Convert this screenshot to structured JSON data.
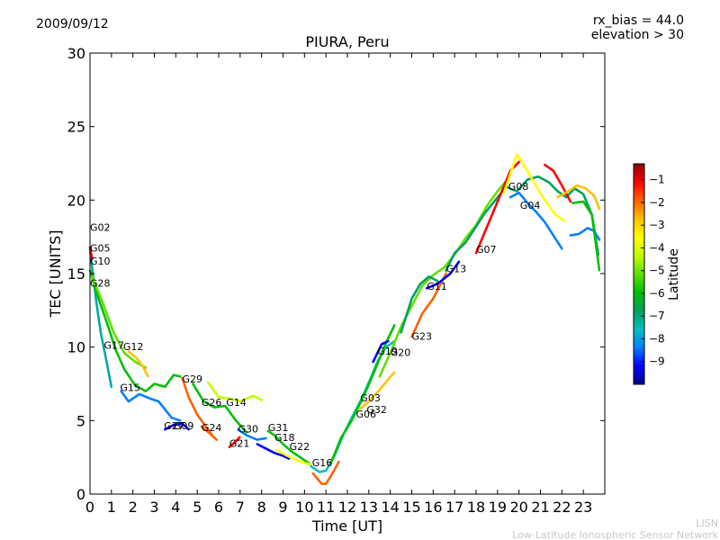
{
  "chart_data": {
    "type": "scatter",
    "title": "PIURA, Peru",
    "date": "2009/09/12",
    "annotation": [
      "rx_bias = 44.0",
      "elevation > 30"
    ],
    "xlabel": "Time [UT]",
    "ylabel": "TEC [UNITS]",
    "xlim": [
      0,
      24
    ],
    "ylim": [
      0,
      30
    ],
    "xticks": [
      "0",
      "1",
      "2",
      "3",
      "4",
      "5",
      "6",
      "7",
      "8",
      "9",
      "10",
      "11",
      "12",
      "13",
      "14",
      "15",
      "16",
      "17",
      "18",
      "19",
      "20",
      "21",
      "22",
      "23"
    ],
    "yticks": [
      "0",
      "5",
      "10",
      "15",
      "20",
      "25",
      "30"
    ],
    "colorbar": {
      "label": "Latitude",
      "range": [
        -10,
        -0.3
      ],
      "ticks": [
        "−1",
        "−2",
        "−3",
        "−4",
        "−5",
        "−6",
        "−7",
        "−8",
        "−9"
      ],
      "colors": [
        "#00008f",
        "#0000ff",
        "#0080ff",
        "#00c0c0",
        "#00a060",
        "#00c000",
        "#60e000",
        "#c0ff00",
        "#ffff00",
        "#ffc000",
        "#ff6000",
        "#ff0000",
        "#900000"
      ]
    },
    "satellite_labels": [
      {
        "name": "G02",
        "t": 0.0,
        "tec": 17.9
      },
      {
        "name": "G05",
        "t": 0.0,
        "tec": 16.5
      },
      {
        "name": "G10",
        "t": 0.0,
        "tec": 15.6
      },
      {
        "name": "G28",
        "t": 0.0,
        "tec": 14.1
      },
      {
        "name": "G17",
        "t": 0.65,
        "tec": 9.9
      },
      {
        "name": "G12",
        "t": 1.55,
        "tec": 9.8
      },
      {
        "name": "G15",
        "t": 1.4,
        "tec": 7.0
      },
      {
        "name": "G29",
        "t": 4.3,
        "tec": 7.6
      },
      {
        "name": "G26",
        "t": 5.2,
        "tec": 6.0
      },
      {
        "name": "G14",
        "t": 6.35,
        "tec": 6.0
      },
      {
        "name": "G27",
        "t": 3.45,
        "tec": 4.4
      },
      {
        "name": "G09",
        "t": 3.9,
        "tec": 4.4
      },
      {
        "name": "G24",
        "t": 5.2,
        "tec": 4.3
      },
      {
        "name": "G30",
        "t": 6.9,
        "tec": 4.2
      },
      {
        "name": "G31",
        "t": 8.3,
        "tec": 4.3
      },
      {
        "name": "G21",
        "t": 6.5,
        "tec": 3.2
      },
      {
        "name": "G18",
        "t": 8.6,
        "tec": 3.6
      },
      {
        "name": "G22",
        "t": 9.3,
        "tec": 3.0
      },
      {
        "name": "G16",
        "t": 10.35,
        "tec": 1.9
      },
      {
        "name": "G06",
        "t": 12.4,
        "tec": 5.2
      },
      {
        "name": "G03",
        "t": 12.6,
        "tec": 6.3
      },
      {
        "name": "G32",
        "t": 12.9,
        "tec": 5.5
      },
      {
        "name": "G19",
        "t": 13.4,
        "tec": 9.5
      },
      {
        "name": "G20",
        "t": 14.0,
        "tec": 9.4
      },
      {
        "name": "G23",
        "t": 15.0,
        "tec": 10.5
      },
      {
        "name": "G11",
        "t": 15.7,
        "tec": 13.9
      },
      {
        "name": "G13",
        "t": 16.6,
        "tec": 15.1
      },
      {
        "name": "G07",
        "t": 18.0,
        "tec": 16.4
      },
      {
        "name": "G08",
        "t": 19.5,
        "tec": 20.7
      },
      {
        "name": "G04",
        "t": 20.05,
        "tec": 19.4
      }
    ],
    "series": [
      {
        "name": "arc-a",
        "color": "#00a8a8",
        "points": [
          [
            0.0,
            16.6
          ],
          [
            0.3,
            13.0
          ],
          [
            0.5,
            11.0
          ],
          [
            0.8,
            8.8
          ],
          [
            1.0,
            7.3
          ]
        ]
      },
      {
        "name": "arc-b",
        "color": "#00c000",
        "points": [
          [
            0.0,
            15.2
          ],
          [
            0.4,
            13.3
          ],
          [
            0.8,
            11.6
          ],
          [
            1.2,
            9.8
          ],
          [
            1.6,
            8.5
          ],
          [
            2.1,
            7.4
          ],
          [
            2.6,
            7.0
          ],
          [
            3.0,
            7.5
          ],
          [
            3.5,
            7.3
          ],
          [
            3.9,
            8.1
          ],
          [
            4.2,
            8.0
          ]
        ]
      },
      {
        "name": "arc-c",
        "color": "#60e000",
        "points": [
          [
            0.1,
            14.8
          ],
          [
            0.6,
            13.0
          ],
          [
            1.1,
            11.0
          ],
          [
            1.6,
            9.6
          ],
          [
            2.1,
            9.0
          ],
          [
            2.6,
            8.6
          ]
        ]
      },
      {
        "name": "arc-d",
        "color": "#0080ff",
        "points": [
          [
            1.45,
            7.0
          ],
          [
            1.8,
            6.3
          ],
          [
            2.3,
            6.8
          ],
          [
            2.8,
            6.5
          ],
          [
            3.2,
            6.3
          ],
          [
            3.8,
            5.2
          ],
          [
            4.2,
            5.0
          ]
        ]
      },
      {
        "name": "arc-e",
        "color": "#ff0000",
        "points": [
          [
            0.0,
            16.8
          ],
          [
            0.1,
            16.0
          ]
        ]
      },
      {
        "name": "arc-f",
        "color": "#ffc000",
        "points": [
          [
            1.8,
            9.7
          ],
          [
            2.2,
            9.2
          ],
          [
            2.5,
            8.6
          ],
          [
            2.7,
            8.0
          ]
        ]
      },
      {
        "name": "arc-g",
        "color": "#ff6000",
        "points": [
          [
            4.3,
            7.9
          ],
          [
            4.6,
            6.6
          ],
          [
            5.0,
            5.4
          ],
          [
            5.4,
            4.6
          ],
          [
            5.7,
            4.0
          ]
        ]
      },
      {
        "name": "arc-h",
        "color": "#00c000",
        "points": [
          [
            4.8,
            7.5
          ],
          [
            5.3,
            6.3
          ],
          [
            5.8,
            5.9
          ],
          [
            6.3,
            6.0
          ],
          [
            6.8,
            5.0
          ],
          [
            7.3,
            4.2
          ]
        ]
      },
      {
        "name": "arc-i",
        "color": "#c0ff00",
        "points": [
          [
            5.5,
            7.6
          ],
          [
            6.0,
            6.6
          ],
          [
            6.5,
            6.5
          ],
          [
            7.0,
            6.3
          ],
          [
            7.6,
            6.7
          ],
          [
            8.0,
            6.4
          ]
        ]
      },
      {
        "name": "arc-j",
        "color": "#0000ff",
        "points": [
          [
            3.5,
            4.4
          ],
          [
            3.9,
            4.7
          ],
          [
            4.3,
            4.8
          ],
          [
            4.6,
            4.4
          ]
        ]
      },
      {
        "name": "arc-k",
        "color": "#ff6000",
        "points": [
          [
            5.2,
            4.6
          ],
          [
            5.6,
            4.1
          ],
          [
            5.9,
            3.7
          ]
        ]
      },
      {
        "name": "arc-l",
        "color": "#0080ff",
        "points": [
          [
            6.9,
            4.4
          ],
          [
            7.3,
            4.0
          ],
          [
            7.8,
            3.7
          ],
          [
            8.2,
            3.8
          ]
        ]
      },
      {
        "name": "arc-m",
        "color": "#ff0000",
        "points": [
          [
            6.5,
            3.2
          ],
          [
            6.8,
            3.6
          ],
          [
            7.0,
            3.9
          ]
        ]
      },
      {
        "name": "arc-n",
        "color": "#00c000",
        "points": [
          [
            8.3,
            4.3
          ],
          [
            8.6,
            4.0
          ],
          [
            9.0,
            3.4
          ],
          [
            9.4,
            2.9
          ],
          [
            9.9,
            2.4
          ],
          [
            10.3,
            2.0
          ]
        ]
      },
      {
        "name": "arc-o",
        "color": "#0000ff",
        "points": [
          [
            7.8,
            3.4
          ],
          [
            8.2,
            3.1
          ],
          [
            8.6,
            2.8
          ],
          [
            9.0,
            2.6
          ],
          [
            9.3,
            2.4
          ]
        ]
      },
      {
        "name": "arc-p",
        "color": "#ffff00",
        "points": [
          [
            8.7,
            3.0
          ],
          [
            9.2,
            2.6
          ],
          [
            9.8,
            2.2
          ],
          [
            10.3,
            2.0
          ]
        ]
      },
      {
        "name": "arc-q",
        "color": "#ff6000",
        "points": [
          [
            10.4,
            1.4
          ],
          [
            10.8,
            0.7
          ],
          [
            11.0,
            0.7
          ],
          [
            11.3,
            1.4
          ],
          [
            11.6,
            2.2
          ]
        ]
      },
      {
        "name": "arc-r",
        "color": "#00c0c0",
        "points": [
          [
            10.3,
            1.9
          ],
          [
            10.7,
            1.5
          ],
          [
            11.0,
            1.6
          ],
          [
            11.4,
            2.6
          ],
          [
            11.8,
            4.0
          ],
          [
            12.2,
            5.2
          ],
          [
            12.6,
            6.3
          ],
          [
            13.0,
            7.6
          ],
          [
            13.4,
            9.0
          ],
          [
            13.8,
            10.0
          ],
          [
            14.2,
            10.4
          ]
        ]
      },
      {
        "name": "arc-s",
        "color": "#00c000",
        "points": [
          [
            11.2,
            2.0
          ],
          [
            11.7,
            3.8
          ],
          [
            12.2,
            5.0
          ],
          [
            12.8,
            6.8
          ],
          [
            13.3,
            8.5
          ],
          [
            13.8,
            10.3
          ],
          [
            14.2,
            11.5
          ]
        ]
      },
      {
        "name": "arc-t",
        "color": "#ffc000",
        "points": [
          [
            12.6,
            5.8
          ],
          [
            13.0,
            6.3
          ],
          [
            13.5,
            7.1
          ],
          [
            13.9,
            7.8
          ],
          [
            14.2,
            8.3
          ]
        ]
      },
      {
        "name": "arc-u",
        "color": "#0000ff",
        "points": [
          [
            13.2,
            9.0
          ],
          [
            13.6,
            10.2
          ],
          [
            13.9,
            10.4
          ]
        ]
      },
      {
        "name": "arc-v",
        "color": "#60e000",
        "points": [
          [
            13.5,
            8.0
          ],
          [
            14.0,
            9.6
          ],
          [
            14.5,
            11.4
          ],
          [
            15.0,
            12.8
          ],
          [
            15.5,
            14.2
          ],
          [
            16.0,
            14.9
          ],
          [
            16.5,
            15.4
          ],
          [
            17.0,
            16.3
          ],
          [
            17.5,
            17.4
          ],
          [
            18.0,
            18.3
          ],
          [
            18.5,
            19.6
          ],
          [
            19.0,
            20.6
          ],
          [
            19.4,
            21.3
          ]
        ]
      },
      {
        "name": "arc-w",
        "color": "#00a060",
        "points": [
          [
            14.5,
            11.0
          ],
          [
            15.0,
            13.3
          ],
          [
            15.4,
            14.3
          ],
          [
            15.8,
            14.8
          ],
          [
            16.2,
            14.5
          ]
        ]
      },
      {
        "name": "arc-x",
        "color": "#ff6000",
        "points": [
          [
            15.0,
            10.7
          ],
          [
            15.5,
            12.3
          ],
          [
            16.0,
            13.3
          ],
          [
            16.6,
            15.0
          ]
        ]
      },
      {
        "name": "arc-y",
        "color": "#0000ff",
        "points": [
          [
            15.7,
            14.0
          ],
          [
            16.2,
            14.3
          ],
          [
            16.8,
            15.0
          ],
          [
            17.2,
            15.8
          ]
        ]
      },
      {
        "name": "arc-z",
        "color": "#00a060",
        "points": [
          [
            16.6,
            15.2
          ],
          [
            17.0,
            16.4
          ],
          [
            17.5,
            17.1
          ],
          [
            18.0,
            18.2
          ],
          [
            18.4,
            19.1
          ],
          [
            18.9,
            20.0
          ],
          [
            19.4,
            20.9
          ],
          [
            19.9,
            20.6
          ],
          [
            20.4,
            21.4
          ],
          [
            20.9,
            21.6
          ],
          [
            21.4,
            21.2
          ],
          [
            21.8,
            20.6
          ],
          [
            22.2,
            20.2
          ],
          [
            22.6,
            20.8
          ],
          [
            23.0,
            20.4
          ],
          [
            23.4,
            19.0
          ],
          [
            23.7,
            16.3
          ]
        ]
      },
      {
        "name": "arc-aa",
        "color": "#ff0000",
        "points": [
          [
            18.0,
            16.4
          ],
          [
            18.4,
            17.8
          ],
          [
            18.8,
            19.2
          ],
          [
            19.2,
            20.6
          ],
          [
            19.6,
            22.0
          ],
          [
            20.0,
            22.6
          ]
        ]
      },
      {
        "name": "arc-ab",
        "color": "#ffff00",
        "points": [
          [
            19.3,
            20.5
          ],
          [
            19.6,
            21.8
          ],
          [
            19.9,
            23.1
          ],
          [
            20.3,
            22.2
          ],
          [
            20.7,
            21.2
          ],
          [
            21.2,
            20.0
          ],
          [
            21.7,
            19.0
          ],
          [
            22.1,
            18.6
          ]
        ]
      },
      {
        "name": "arc-ac",
        "color": "#0080ff",
        "points": [
          [
            19.6,
            20.2
          ],
          [
            20.0,
            20.5
          ],
          [
            20.4,
            19.8
          ],
          [
            20.8,
            19.2
          ],
          [
            21.2,
            18.5
          ],
          [
            21.6,
            17.6
          ],
          [
            22.0,
            16.7
          ]
        ]
      },
      {
        "name": "arc-ad",
        "color": "#ff0000",
        "points": [
          [
            21.2,
            22.4
          ],
          [
            21.6,
            22.0
          ],
          [
            22.0,
            21.0
          ],
          [
            22.4,
            19.9
          ]
        ]
      },
      {
        "name": "arc-ae",
        "color": "#ffc000",
        "points": [
          [
            21.8,
            20.2
          ],
          [
            22.3,
            20.6
          ],
          [
            22.7,
            21.0
          ],
          [
            23.1,
            20.8
          ],
          [
            23.5,
            20.3
          ],
          [
            23.75,
            19.4
          ]
        ]
      },
      {
        "name": "arc-af",
        "color": "#0080ff",
        "points": [
          [
            22.4,
            17.6
          ],
          [
            22.8,
            17.7
          ],
          [
            23.2,
            18.1
          ],
          [
            23.5,
            17.9
          ],
          [
            23.75,
            17.3
          ]
        ]
      },
      {
        "name": "arc-ag",
        "color": "#00c000",
        "points": [
          [
            22.5,
            19.8
          ],
          [
            23.0,
            19.9
          ],
          [
            23.4,
            19.0
          ],
          [
            23.75,
            15.2
          ]
        ]
      }
    ]
  },
  "footer": {
    "line1": "LISN",
    "line2": "Low-Latitude Ionospheric Sensor Network"
  }
}
